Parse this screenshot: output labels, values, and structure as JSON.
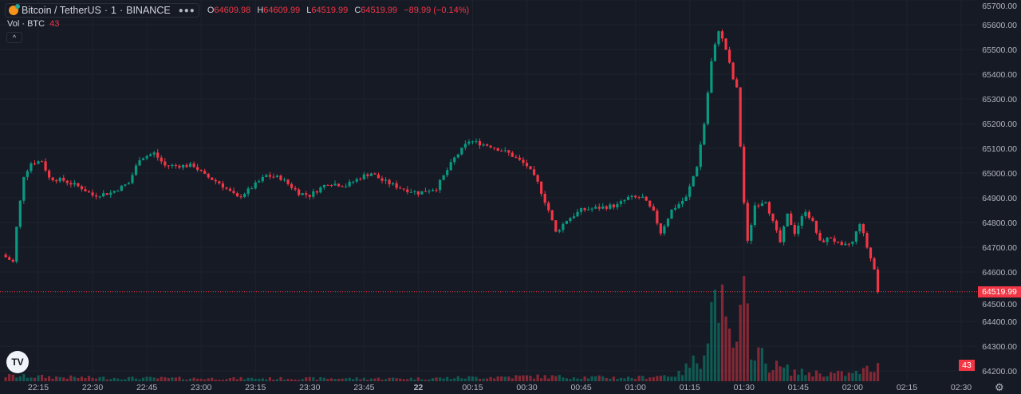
{
  "header": {
    "symbol": "Bitcoin / TetherUS",
    "interval": "1",
    "exchange": "BINANCE",
    "o_label": "O",
    "o": "64609.98",
    "h_label": "H",
    "h": "64609.99",
    "l_label": "L",
    "l": "64519.99",
    "c_label": "C",
    "c": "64519.99",
    "change": "−89.99 (−0.14%)"
  },
  "volume_legend": {
    "label": "Vol · BTC",
    "value": "43"
  },
  "logo": "TV",
  "colors": {
    "up": "#089981",
    "down": "#f23645",
    "bg": "#161a25",
    "grid": "#1e222d"
  },
  "chart_data": {
    "type": "candlestick",
    "title": "Bitcoin / TetherUS · 1 · BINANCE",
    "start_time": "22:06",
    "interval_minutes": 1,
    "close_keypoints": [
      [
        "22:06",
        64660
      ],
      [
        "22:08",
        64640
      ],
      [
        "22:09",
        64780
      ],
      [
        "22:11",
        64990
      ],
      [
        "22:13",
        65040
      ],
      [
        "22:16",
        65050
      ],
      [
        "22:18",
        64980
      ],
      [
        "22:22",
        64970
      ],
      [
        "22:27",
        64940
      ],
      [
        "22:30",
        64910
      ],
      [
        "22:35",
        64920
      ],
      [
        "22:40",
        64960
      ],
      [
        "22:43",
        65060
      ],
      [
        "22:47",
        65080
      ],
      [
        "22:50",
        65030
      ],
      [
        "22:58",
        65030
      ],
      [
        "23:01",
        64990
      ],
      [
        "23:05",
        64960
      ],
      [
        "23:10",
        64900
      ],
      [
        "23:13",
        64930
      ],
      [
        "23:18",
        64990
      ],
      [
        "23:22",
        64980
      ],
      [
        "23:27",
        64920
      ],
      [
        "23:30",
        64910
      ],
      [
        "23:35",
        64960
      ],
      [
        "23:40",
        64950
      ],
      [
        "23:45",
        64990
      ],
      [
        "23:47",
        65000
      ],
      [
        "23:50",
        64970
      ],
      [
        "23:55",
        64940
      ],
      [
        "00:00",
        64920
      ],
      [
        "00:05",
        64940
      ],
      [
        "00:10",
        65060
      ],
      [
        "00:14",
        65130
      ],
      [
        "00:20",
        65110
      ],
      [
        "00:25",
        65080
      ],
      [
        "00:30",
        65030
      ],
      [
        "00:33",
        64960
      ],
      [
        "00:36",
        64850
      ],
      [
        "00:38",
        64760
      ],
      [
        "00:41",
        64810
      ],
      [
        "00:45",
        64850
      ],
      [
        "00:50",
        64860
      ],
      [
        "00:55",
        64870
      ],
      [
        "00:58",
        64900
      ],
      [
        "01:02",
        64900
      ],
      [
        "01:05",
        64840
      ],
      [
        "01:07",
        64760
      ],
      [
        "01:10",
        64850
      ],
      [
        "01:14",
        64900
      ],
      [
        "01:17",
        65030
      ],
      [
        "01:19",
        65200
      ],
      [
        "01:21",
        65450
      ],
      [
        "01:23",
        65580
      ],
      [
        "01:25",
        65500
      ],
      [
        "01:27",
        65380
      ],
      [
        "01:28",
        65340
      ],
      [
        "01:30",
        64880
      ],
      [
        "01:31",
        64720
      ],
      [
        "01:33",
        64870
      ],
      [
        "01:36",
        64890
      ],
      [
        "01:38",
        64800
      ],
      [
        "01:40",
        64720
      ],
      [
        "01:42",
        64830
      ],
      [
        "01:44",
        64760
      ],
      [
        "01:47",
        64850
      ],
      [
        "01:49",
        64800
      ],
      [
        "01:51",
        64720
      ],
      [
        "01:54",
        64740
      ],
      [
        "01:57",
        64700
      ],
      [
        "02:00",
        64720
      ],
      [
        "02:02",
        64800
      ],
      [
        "02:04",
        64700
      ],
      [
        "02:06",
        64609.98
      ],
      [
        "02:07",
        64519.99
      ]
    ],
    "volume_keypoints": [
      [
        "22:06",
        15
      ],
      [
        "22:30",
        10
      ],
      [
        "23:00",
        8
      ],
      [
        "23:30",
        8
      ],
      [
        "00:00",
        8
      ],
      [
        "00:30",
        14
      ],
      [
        "01:00",
        10
      ],
      [
        "01:12",
        20
      ],
      [
        "01:18",
        70
      ],
      [
        "01:21",
        200
      ],
      [
        "01:23",
        270
      ],
      [
        "01:25",
        130
      ],
      [
        "01:28",
        90
      ],
      [
        "01:30",
        230
      ],
      [
        "01:32",
        120
      ],
      [
        "01:36",
        50
      ],
      [
        "01:45",
        25
      ],
      [
        "02:00",
        20
      ],
      [
        "02:07",
        43
      ]
    ],
    "y_ticks": [
      "65700.00",
      "65600.00",
      "65500.00",
      "65400.00",
      "65300.00",
      "65200.00",
      "65100.00",
      "65000.00",
      "64900.00",
      "64800.00",
      "64700.00",
      "64600.00",
      "64500.00",
      "64400.00",
      "64300.00",
      "64200.00"
    ],
    "ylim": [
      64200,
      65700
    ],
    "x_ticks": [
      "22:15",
      "22:30",
      "22:45",
      "23:00",
      "23:15",
      "23:30",
      "23:45",
      "22",
      "00:15",
      "00:30",
      "00:45",
      "01:00",
      "01:15",
      "01:30",
      "01:45",
      "02:00",
      "02:15",
      "02:30"
    ],
    "last_price_label": "64519.99",
    "last_volume_label": "43"
  }
}
